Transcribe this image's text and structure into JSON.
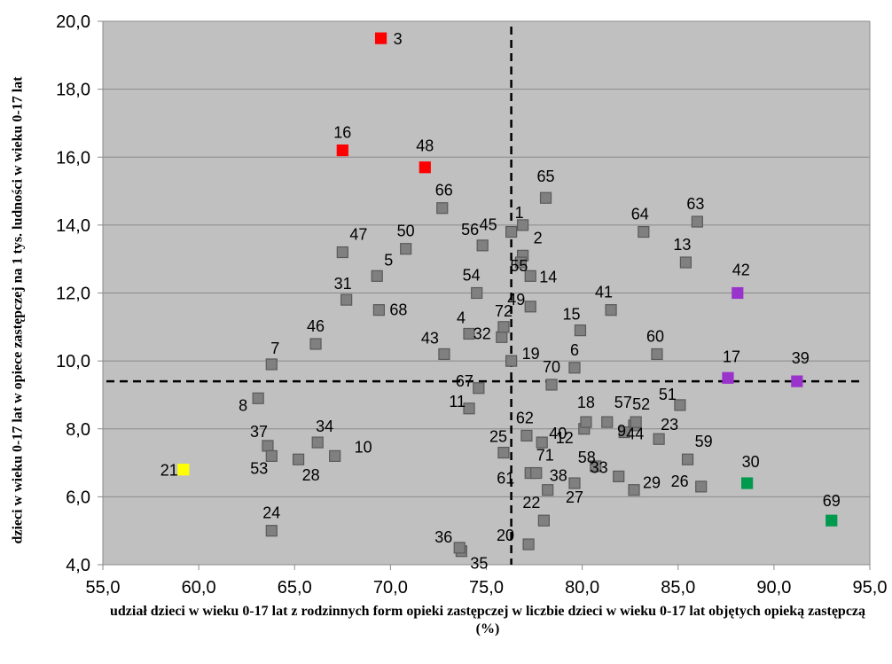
{
  "chart_data": {
    "type": "scatter",
    "title": "",
    "xlabel": "udział dzieci w wieku 0-17 lat z rodzinnych form opieki zastępczej w liczbie dzieci w wieku 0-17 lat objętych opieką zastępczą (%)",
    "ylabel": "dzieci w wieku 0-17 lat w opiece zastępczej na 1 tys. ludności w wieku 0-17 lat",
    "xlim": [
      55,
      95
    ],
    "ylim": [
      4,
      20
    ],
    "x_ticks": [
      "55,0",
      "60,0",
      "65,0",
      "70,0",
      "75,0",
      "80,0",
      "85,0",
      "90,0",
      "95,0"
    ],
    "y_ticks": [
      "4,0",
      "6,0",
      "8,0",
      "10,0",
      "12,0",
      "14,0",
      "16,0",
      "18,0",
      "20,0"
    ],
    "grid": "horizontal",
    "plot_background": "#c0c0c0",
    "reference_lines": {
      "x": 76.3,
      "y": 9.4,
      "style": "dashed"
    },
    "colors": {
      "red": "#ff0000",
      "gray": "#808080",
      "purple": "#9933cc",
      "green": "#009a4e",
      "yellow": "#ffff00"
    },
    "points": [
      {
        "label": "1",
        "x": 76.9,
        "y": 14.0,
        "color": "gray"
      },
      {
        "label": "2",
        "x": 76.9,
        "y": 13.1,
        "color": "gray"
      },
      {
        "label": "3",
        "x": 69.5,
        "y": 19.5,
        "color": "red"
      },
      {
        "label": "4",
        "x": 74.1,
        "y": 10.8,
        "color": "gray"
      },
      {
        "label": "5",
        "x": 69.3,
        "y": 12.5,
        "color": "gray"
      },
      {
        "label": "6",
        "x": 79.6,
        "y": 9.8,
        "color": "gray"
      },
      {
        "label": "7",
        "x": 63.8,
        "y": 9.9,
        "color": "gray"
      },
      {
        "label": "8",
        "x": 63.1,
        "y": 8.9,
        "color": "gray"
      },
      {
        "label": "9",
        "x": 82.7,
        "y": 8.1,
        "color": "gray"
      },
      {
        "label": "10",
        "x": 67.1,
        "y": 7.2,
        "color": "gray"
      },
      {
        "label": "11",
        "x": 74.1,
        "y": 8.6,
        "color": "gray"
      },
      {
        "label": "12",
        "x": 80.1,
        "y": 8.0,
        "color": "gray"
      },
      {
        "label": "13",
        "x": 85.4,
        "y": 12.9,
        "color": "gray"
      },
      {
        "label": "14",
        "x": 77.3,
        "y": 12.5,
        "color": "gray"
      },
      {
        "label": "15",
        "x": 79.9,
        "y": 10.9,
        "color": "gray"
      },
      {
        "label": "16",
        "x": 67.5,
        "y": 16.2,
        "color": "red"
      },
      {
        "label": "17",
        "x": 87.6,
        "y": 9.5,
        "color": "purple"
      },
      {
        "label": "18",
        "x": 80.2,
        "y": 8.2,
        "color": "gray"
      },
      {
        "label": "19",
        "x": 76.3,
        "y": 10.0,
        "color": "gray"
      },
      {
        "label": "20",
        "x": 77.2,
        "y": 4.6,
        "color": "gray"
      },
      {
        "label": "21",
        "x": 59.2,
        "y": 6.8,
        "color": "yellow"
      },
      {
        "label": "22",
        "x": 78.0,
        "y": 5.3,
        "color": "gray"
      },
      {
        "label": "23",
        "x": 84.0,
        "y": 7.7,
        "color": "gray"
      },
      {
        "label": "24",
        "x": 63.8,
        "y": 5.0,
        "color": "gray"
      },
      {
        "label": "25",
        "x": 75.9,
        "y": 7.3,
        "color": "gray"
      },
      {
        "label": "26",
        "x": 86.2,
        "y": 6.3,
        "color": "gray"
      },
      {
        "label": "27",
        "x": 79.6,
        "y": 6.4,
        "color": "gray"
      },
      {
        "label": "28",
        "x": 65.2,
        "y": 7.1,
        "color": "gray"
      },
      {
        "label": "29",
        "x": 82.7,
        "y": 6.2,
        "color": "gray"
      },
      {
        "label": "30",
        "x": 88.6,
        "y": 6.4,
        "color": "green"
      },
      {
        "label": "31",
        "x": 67.7,
        "y": 11.8,
        "color": "gray"
      },
      {
        "label": "32",
        "x": 75.8,
        "y": 10.7,
        "color": "gray"
      },
      {
        "label": "33",
        "x": 81.9,
        "y": 6.6,
        "color": "gray"
      },
      {
        "label": "34",
        "x": 66.2,
        "y": 7.6,
        "color": "gray"
      },
      {
        "label": "35",
        "x": 73.7,
        "y": 4.4,
        "color": "gray"
      },
      {
        "label": "36",
        "x": 73.6,
        "y": 4.5,
        "color": "gray"
      },
      {
        "label": "37",
        "x": 63.6,
        "y": 7.5,
        "color": "gray"
      },
      {
        "label": "38",
        "x": 78.2,
        "y": 6.2,
        "color": "gray"
      },
      {
        "label": "39",
        "x": 91.2,
        "y": 9.4,
        "color": "purple"
      },
      {
        "label": "40",
        "x": 77.9,
        "y": 7.6,
        "color": "gray"
      },
      {
        "label": "41",
        "x": 81.5,
        "y": 11.5,
        "color": "gray"
      },
      {
        "label": "42",
        "x": 88.1,
        "y": 12.0,
        "color": "purple"
      },
      {
        "label": "43",
        "x": 72.8,
        "y": 10.2,
        "color": "gray"
      },
      {
        "label": "44",
        "x": 82.2,
        "y": 7.9,
        "color": "gray"
      },
      {
        "label": "45",
        "x": 76.3,
        "y": 13.8,
        "color": "gray"
      },
      {
        "label": "46",
        "x": 66.1,
        "y": 10.5,
        "color": "gray"
      },
      {
        "label": "47",
        "x": 67.5,
        "y": 13.2,
        "color": "gray"
      },
      {
        "label": "48",
        "x": 71.8,
        "y": 15.7,
        "color": "red"
      },
      {
        "label": "49",
        "x": 77.3,
        "y": 11.6,
        "color": "gray"
      },
      {
        "label": "50",
        "x": 70.8,
        "y": 13.3,
        "color": "gray"
      },
      {
        "label": "51",
        "x": 85.1,
        "y": 8.7,
        "color": "gray"
      },
      {
        "label": "52",
        "x": 82.8,
        "y": 8.2,
        "color": "gray"
      },
      {
        "label": "53",
        "x": 63.8,
        "y": 7.2,
        "color": "gray"
      },
      {
        "label": "54",
        "x": 74.5,
        "y": 12.0,
        "color": "gray"
      },
      {
        "label": "55",
        "x": 76.8,
        "y": 12.9,
        "color": "gray"
      },
      {
        "label": "56",
        "x": 74.8,
        "y": 13.4,
        "color": "gray"
      },
      {
        "label": "57",
        "x": 81.3,
        "y": 8.2,
        "color": "gray"
      },
      {
        "label": "58",
        "x": 80.7,
        "y": 6.9,
        "color": "gray"
      },
      {
        "label": "59",
        "x": 85.5,
        "y": 7.1,
        "color": "gray"
      },
      {
        "label": "60",
        "x": 83.9,
        "y": 10.2,
        "color": "gray"
      },
      {
        "label": "61",
        "x": 77.3,
        "y": 6.7,
        "color": "gray"
      },
      {
        "label": "62",
        "x": 77.1,
        "y": 7.8,
        "color": "gray"
      },
      {
        "label": "63",
        "x": 86.0,
        "y": 14.1,
        "color": "gray"
      },
      {
        "label": "64",
        "x": 83.2,
        "y": 13.8,
        "color": "gray"
      },
      {
        "label": "65",
        "x": 78.1,
        "y": 14.8,
        "color": "gray"
      },
      {
        "label": "66",
        "x": 72.7,
        "y": 14.5,
        "color": "gray"
      },
      {
        "label": "67",
        "x": 74.6,
        "y": 9.2,
        "color": "gray"
      },
      {
        "label": "68",
        "x": 69.4,
        "y": 11.5,
        "color": "gray"
      },
      {
        "label": "69",
        "x": 93.0,
        "y": 5.3,
        "color": "green"
      },
      {
        "label": "70",
        "x": 78.4,
        "y": 9.3,
        "color": "gray"
      },
      {
        "label": "71",
        "x": 77.6,
        "y": 6.7,
        "color": "gray"
      },
      {
        "label": "72",
        "x": 75.9,
        "y": 11.0,
        "color": "gray"
      }
    ]
  }
}
